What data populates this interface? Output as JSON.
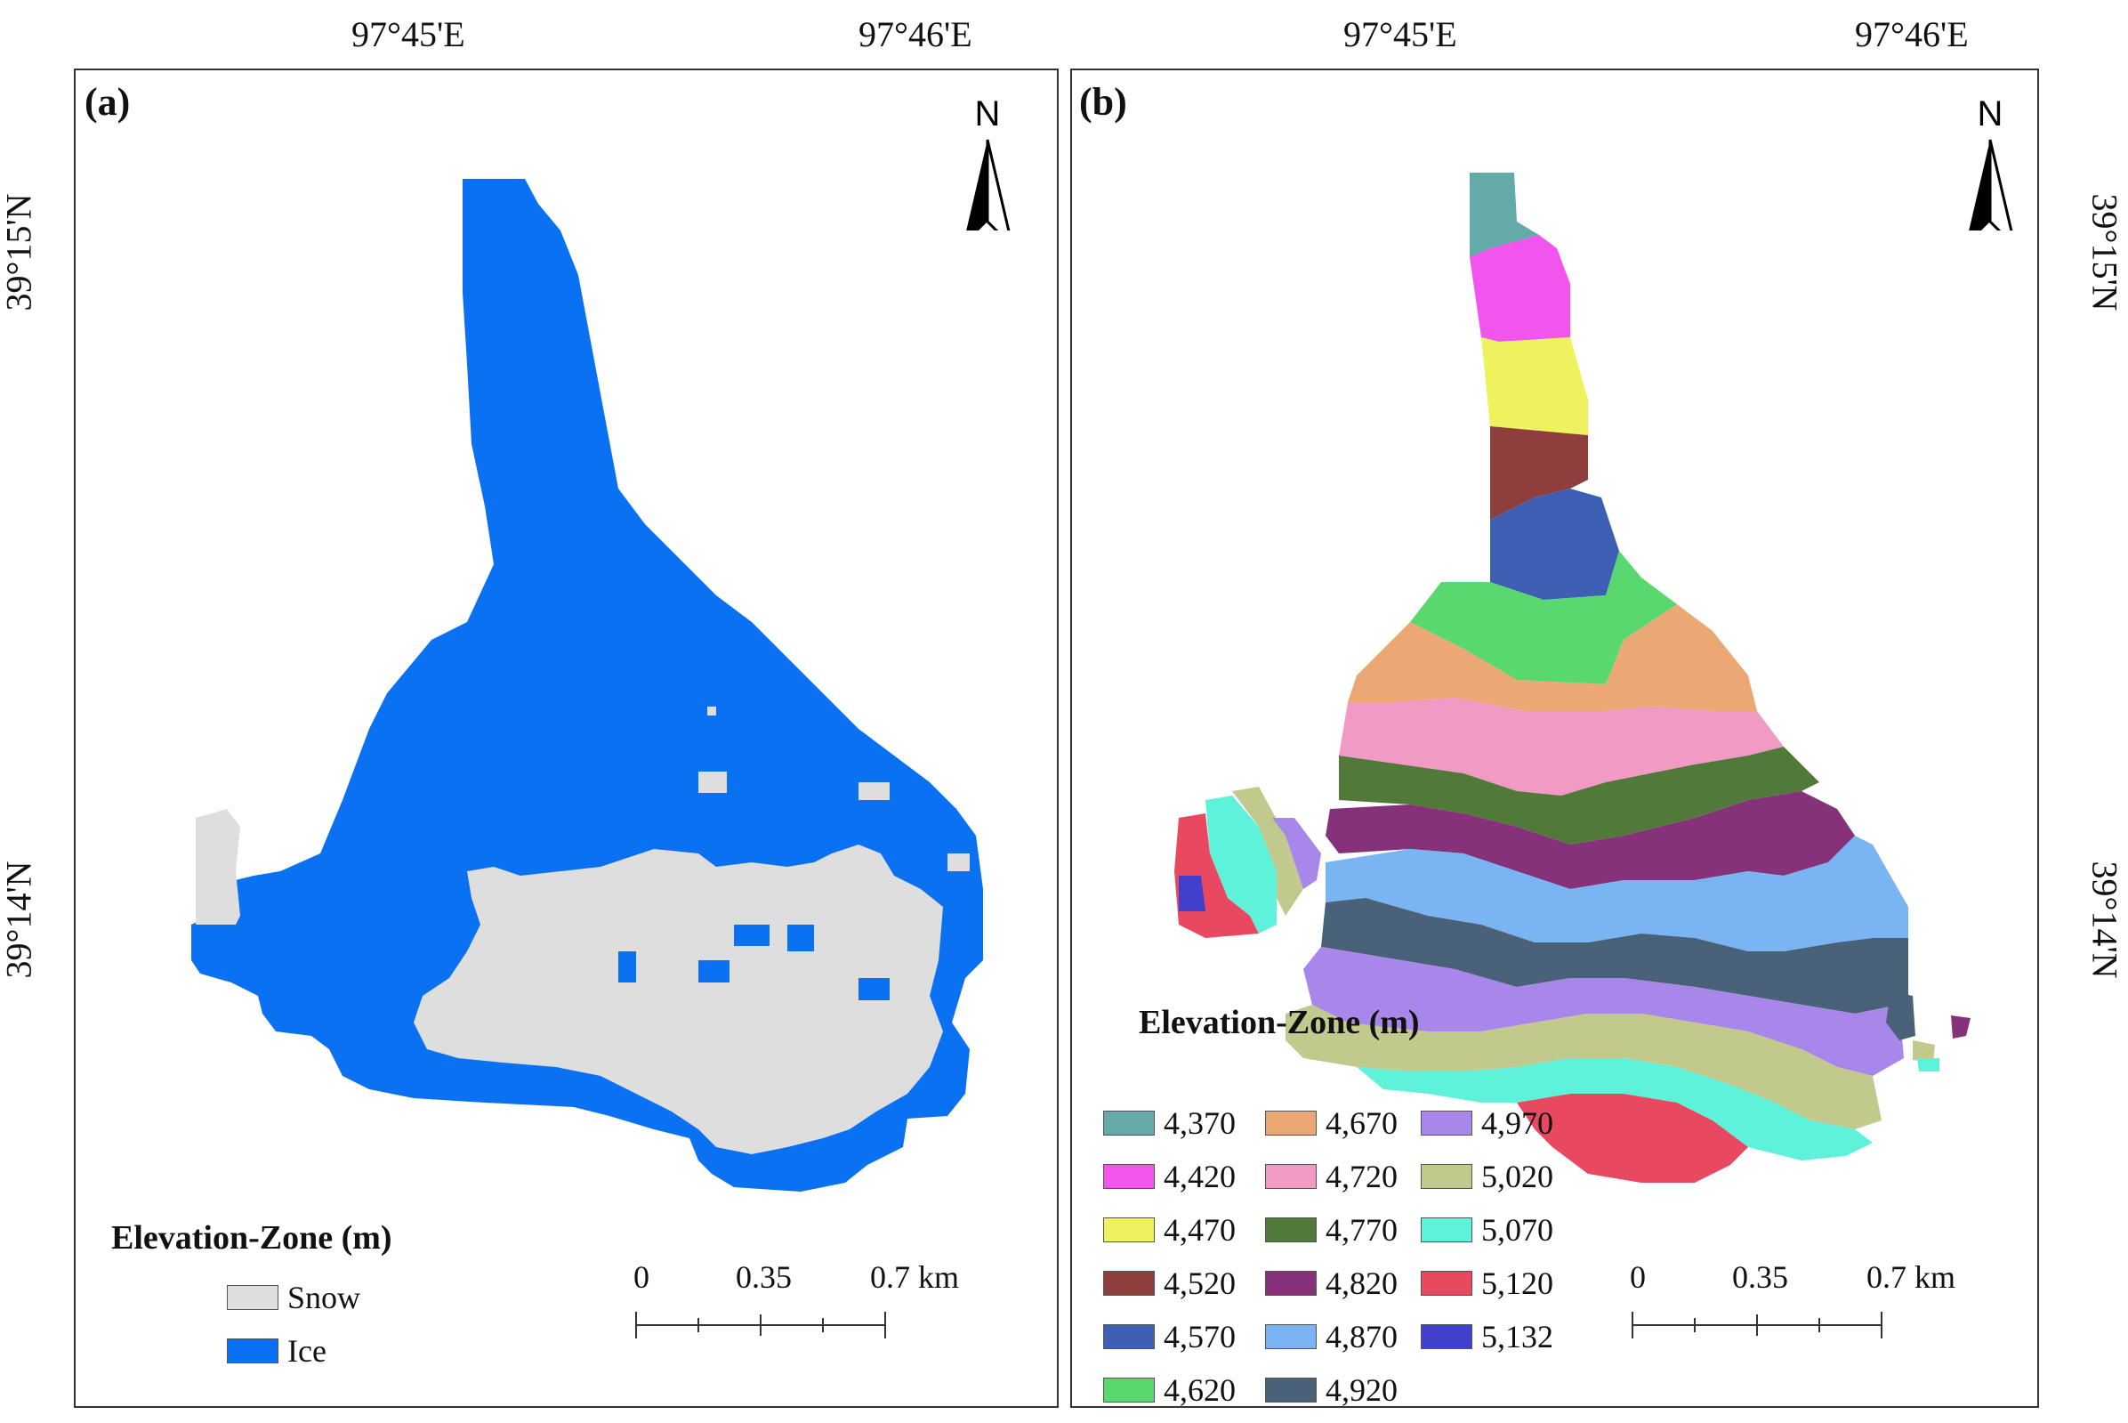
{
  "axes": {
    "top_a": [
      "97°45'E",
      "97°46'E"
    ],
    "top_b": [
      "97°45'E",
      "97°46'E"
    ],
    "left_a": [
      "39°15'N",
      "39°14'N"
    ],
    "right_b": [
      "39°15'N",
      "39°14'N"
    ]
  },
  "panel_a": {
    "tag": "(a)",
    "north": "N",
    "legend_title": "Elevation-Zone (m)",
    "legend": [
      {
        "label": "Snow",
        "color": "#dedede"
      },
      {
        "label": "Ice",
        "color": "#0a72f2"
      }
    ],
    "scale": {
      "labels": [
        "0",
        "0.35",
        "0.7 km"
      ]
    }
  },
  "panel_b": {
    "tag": "(b)",
    "north": "N",
    "legend_title": "Elevation-Zone (m)",
    "legend": [
      {
        "label": "4,370",
        "color": "#63aaa8"
      },
      {
        "label": "4,420",
        "color": "#f255ee"
      },
      {
        "label": "4,470",
        "color": "#eef25e"
      },
      {
        "label": "4,520",
        "color": "#8f3e3e"
      },
      {
        "label": "4,570",
        "color": "#3f5fb4"
      },
      {
        "label": "4,620",
        "color": "#58d86e"
      },
      {
        "label": "4,670",
        "color": "#eba874"
      },
      {
        "label": "4,720",
        "color": "#f19ac4"
      },
      {
        "label": "4,770",
        "color": "#517a3a"
      },
      {
        "label": "4,820",
        "color": "#86327a"
      },
      {
        "label": "4,870",
        "color": "#7ab4f2"
      },
      {
        "label": "4,920",
        "color": "#496279"
      },
      {
        "label": "4,970",
        "color": "#a886ea"
      },
      {
        "label": "5,020",
        "color": "#c1c98d"
      },
      {
        "label": "5,070",
        "color": "#5ff2da"
      },
      {
        "label": "5,120",
        "color": "#e84860"
      },
      {
        "label": "5,132",
        "color": "#4040cc"
      }
    ],
    "scale": {
      "labels": [
        "0",
        "0.35",
        "0.7 km"
      ]
    }
  }
}
